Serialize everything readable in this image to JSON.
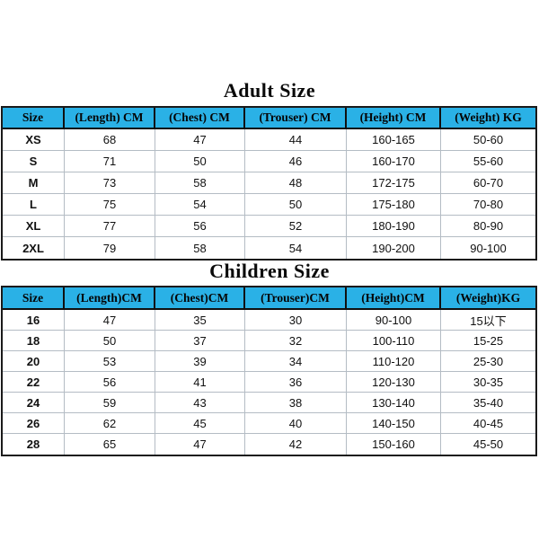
{
  "colors": {
    "header_bg": "#2ab1e6",
    "border_dark": "#1a1a1a",
    "grid_line": "#b4bcc4",
    "text": "#111111"
  },
  "adult_table": {
    "title": "Adult Size",
    "headers": [
      "Size",
      "(Length) CM",
      "(Chest) CM",
      "(Trouser) CM",
      "(Height) CM",
      "(Weight) KG"
    ],
    "rows": [
      [
        "XS",
        "68",
        "47",
        "44",
        "160-165",
        "50-60"
      ],
      [
        "S",
        "71",
        "50",
        "46",
        "160-170",
        "55-60"
      ],
      [
        "M",
        "73",
        "58",
        "48",
        "172-175",
        "60-70"
      ],
      [
        "L",
        "75",
        "54",
        "50",
        "175-180",
        "70-80"
      ],
      [
        "XL",
        "77",
        "56",
        "52",
        "180-190",
        "80-90"
      ],
      [
        "2XL",
        "79",
        "58",
        "54",
        "190-200",
        "90-100"
      ]
    ]
  },
  "children_table": {
    "title": "Children Size",
    "headers": [
      "Size",
      "(Length)CM",
      "(Chest)CM",
      "(Trouser)CM",
      "(Height)CM",
      "(Weight)KG"
    ],
    "rows": [
      [
        "16",
        "47",
        "35",
        "30",
        "90-100",
        "15以下"
      ],
      [
        "18",
        "50",
        "37",
        "32",
        "100-110",
        "15-25"
      ],
      [
        "20",
        "53",
        "39",
        "34",
        "110-120",
        "25-30"
      ],
      [
        "22",
        "56",
        "41",
        "36",
        "120-130",
        "30-35"
      ],
      [
        "24",
        "59",
        "43",
        "38",
        "130-140",
        "35-40"
      ],
      [
        "26",
        "62",
        "45",
        "40",
        "140-150",
        "40-45"
      ],
      [
        "28",
        "65",
        "47",
        "42",
        "150-160",
        "45-50"
      ]
    ]
  }
}
